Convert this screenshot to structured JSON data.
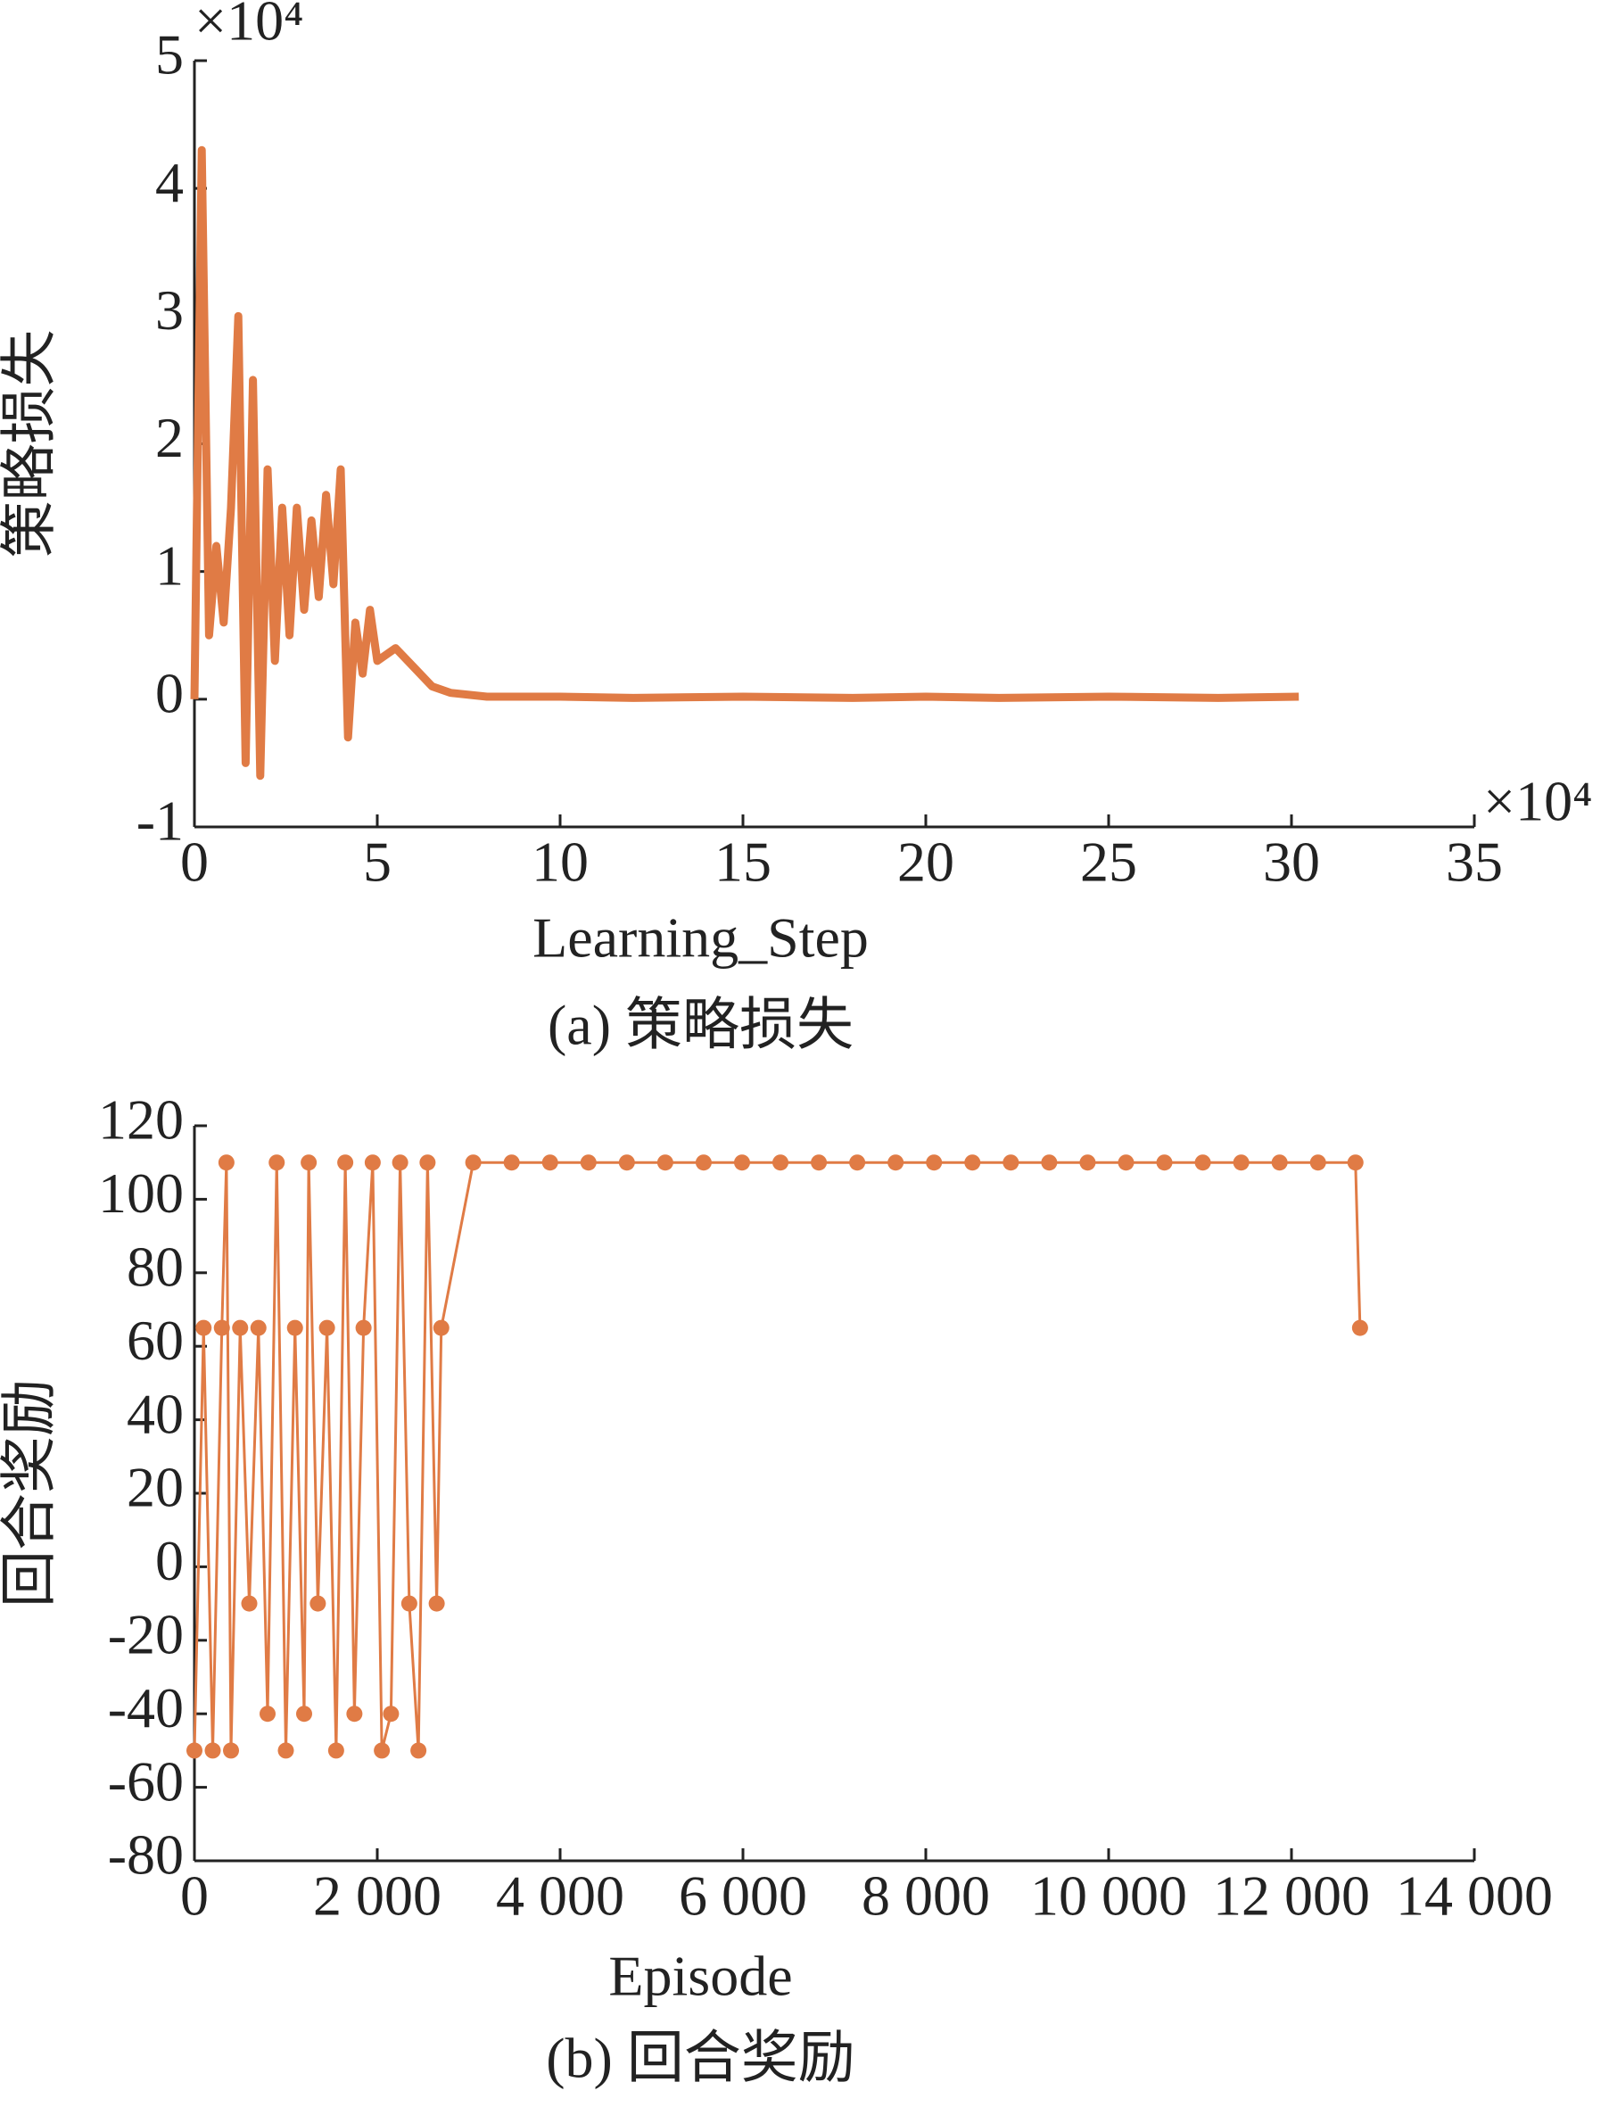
{
  "chart_data": [
    {
      "type": "line",
      "caption": "(a) 策略损失",
      "xlabel": "Learning_Step",
      "ylabel": "策略损失",
      "x_multiplier": "×10⁴",
      "y_multiplier": "×10⁴",
      "color": "#e07b45",
      "markers": false,
      "xlim": [
        0,
        35
      ],
      "xticks": [
        0,
        5,
        10,
        15,
        20,
        25,
        30,
        35
      ],
      "ylim": [
        -1,
        5
      ],
      "yticks": [
        -1,
        0,
        1,
        2,
        3,
        4,
        5
      ],
      "x": [
        0,
        0.2,
        0.4,
        0.6,
        0.8,
        1.0,
        1.2,
        1.4,
        1.6,
        1.8,
        2.0,
        2.2,
        2.4,
        2.6,
        2.8,
        3.0,
        3.2,
        3.4,
        3.6,
        3.8,
        4.0,
        4.2,
        4.4,
        4.6,
        4.8,
        5.0,
        5.5,
        6,
        6.5,
        7,
        8,
        10,
        12,
        15,
        18,
        20,
        22,
        25,
        28,
        30.2
      ],
      "values": [
        0,
        4.3,
        0.5,
        1.2,
        0.6,
        1.5,
        3.0,
        -0.5,
        2.5,
        -0.6,
        1.8,
        0.3,
        1.5,
        0.5,
        1.5,
        0.7,
        1.4,
        0.8,
        1.6,
        0.9,
        1.8,
        -0.3,
        0.6,
        0.2,
        0.7,
        0.3,
        0.4,
        0.25,
        0.1,
        0.05,
        0.02,
        0.02,
        0.01,
        0.02,
        0.01,
        0.02,
        0.01,
        0.02,
        0.01,
        0.02
      ]
    },
    {
      "type": "line",
      "caption": "(b) 回合奖励",
      "xlabel": "Episode",
      "ylabel": "回合奖励",
      "color": "#e07b45",
      "markers": true,
      "xlim": [
        0,
        14000
      ],
      "xticks": [
        0,
        {
          "value": 2000,
          "label": "2 000"
        },
        {
          "value": 4000,
          "label": "4 000"
        },
        {
          "value": 6000,
          "label": "6 000"
        },
        {
          "value": 8000,
          "label": "8 000"
        },
        {
          "value": 10000,
          "label": "10 000"
        },
        {
          "value": 12000,
          "label": "12 000"
        },
        {
          "value": 14000,
          "label": "14 000"
        }
      ],
      "ylim": [
        -80,
        120
      ],
      "yticks": [
        -80,
        -60,
        -40,
        -20,
        0,
        20,
        40,
        60,
        80,
        100,
        120
      ],
      "x": [
        0,
        100,
        200,
        300,
        350,
        400,
        500,
        600,
        700,
        800,
        900,
        1000,
        1100,
        1200,
        1250,
        1350,
        1450,
        1550,
        1650,
        1750,
        1850,
        1950,
        2050,
        2150,
        2250,
        2350,
        2450,
        2550,
        2650,
        2700,
        3050,
        3470,
        3890,
        4310,
        4730,
        5150,
        5570,
        5990,
        6410,
        6830,
        7250,
        7670,
        8090,
        8510,
        8930,
        9350,
        9770,
        10190,
        10610,
        11030,
        11450,
        11870,
        12290,
        12700,
        12750
      ],
      "values": [
        -50,
        65,
        -50,
        65,
        110,
        -50,
        65,
        -10,
        65,
        -40,
        110,
        -50,
        65,
        -40,
        110,
        -10,
        65,
        -50,
        110,
        -40,
        65,
        110,
        -50,
        -40,
        110,
        -10,
        -50,
        110,
        -10,
        65,
        110,
        110,
        110,
        110,
        110,
        110,
        110,
        110,
        110,
        110,
        110,
        110,
        110,
        110,
        110,
        110,
        110,
        110,
        110,
        110,
        110,
        110,
        110,
        110,
        65
      ]
    }
  ]
}
